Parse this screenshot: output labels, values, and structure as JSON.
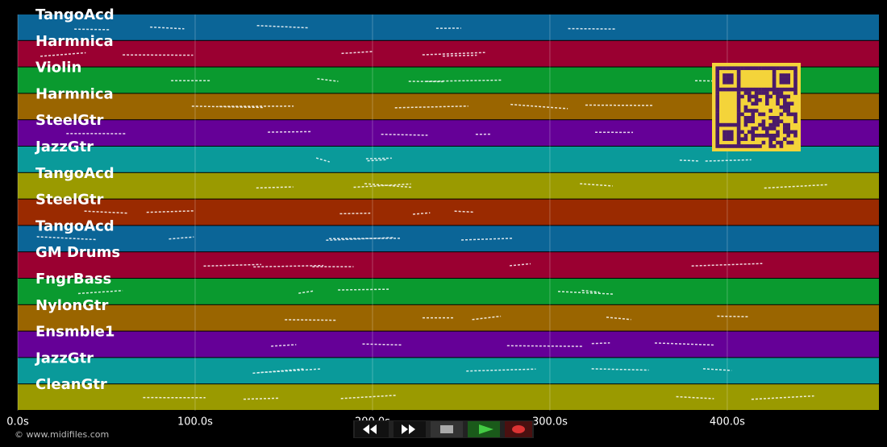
{
  "tracks": [
    {
      "name": "TangoAcd",
      "color": "#0b6597"
    },
    {
      "name": "Harmnica",
      "color": "#9a0031"
    },
    {
      "name": "Violin",
      "color": "#0a9a2f"
    },
    {
      "name": "Harmnica",
      "color": "#9a6500"
    },
    {
      "name": "SteelGtr",
      "color": "#650097"
    },
    {
      "name": "JazzGtr",
      "color": "#0a9a9a"
    },
    {
      "name": "TangoAcd",
      "color": "#9a9a00"
    },
    {
      "name": "SteelGtr",
      "color": "#9a2a00"
    },
    {
      "name": "TangoAcd",
      "color": "#0b6597"
    },
    {
      "name": "GM Drums",
      "color": "#9a0031"
    },
    {
      "name": "FngrBass",
      "color": "#0a9a2f"
    },
    {
      "name": "NylonGtr",
      "color": "#9a6500"
    },
    {
      "name": "Ensmble1",
      "color": "#650097"
    },
    {
      "name": "JazzGtr",
      "color": "#0a9a9a"
    },
    {
      "name": "CleanGtr",
      "color": "#9a9a00"
    }
  ],
  "timeline": {
    "range": [
      0,
      485.5
    ],
    "ticks": [
      {
        "value": 0,
        "label": "0.0s"
      },
      {
        "value": 100,
        "label": "100.0s"
      },
      {
        "value": 200,
        "label": "200.0s"
      },
      {
        "value": 300,
        "label": "300.0s"
      },
      {
        "value": 400,
        "label": "400.0s"
      }
    ]
  },
  "footer": {
    "copyright": "© www.midifiles.com"
  }
}
